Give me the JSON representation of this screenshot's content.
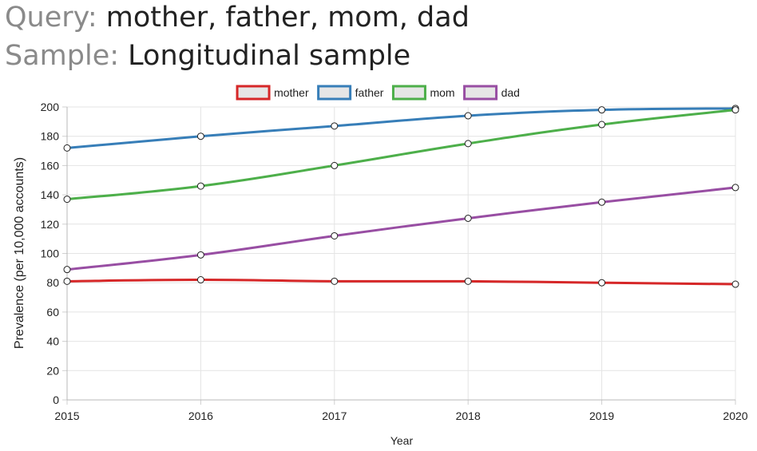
{
  "header": {
    "query_key": "Query:",
    "query_value": "mother, father, mom, dad",
    "sample_key": "Sample:",
    "sample_value": "Longitudinal sample"
  },
  "chart_data": {
    "type": "line",
    "x": [
      "2015",
      "2016",
      "2017",
      "2018",
      "2019",
      "2020"
    ],
    "series": [
      {
        "name": "mother",
        "color": "#d62728",
        "values": [
          81,
          82,
          81,
          81,
          80,
          79
        ]
      },
      {
        "name": "father",
        "color": "#377eb8",
        "values": [
          172,
          180,
          187,
          194,
          198,
          199
        ]
      },
      {
        "name": "mom",
        "color": "#4daf4a",
        "values": [
          137,
          146,
          160,
          175,
          188,
          198
        ]
      },
      {
        "name": "dad",
        "color": "#984ea3",
        "values": [
          89,
          99,
          112,
          124,
          135,
          145
        ]
      }
    ],
    "xlabel": "Year",
    "ylabel": "Prevalence (per 10,000 accounts)",
    "ylim": [
      0,
      200
    ],
    "yticks": [
      "0",
      "20",
      "40",
      "60",
      "80",
      "100",
      "120",
      "140",
      "160",
      "180",
      "200"
    ],
    "grid": true,
    "legend_position": "top"
  }
}
